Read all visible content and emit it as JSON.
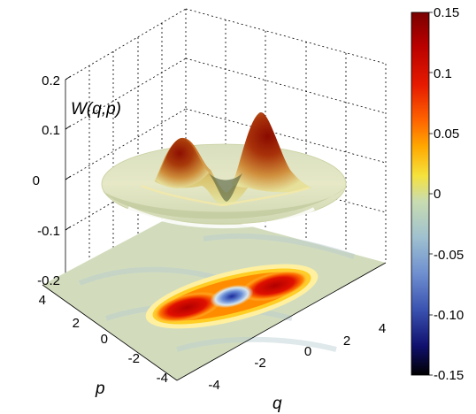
{
  "chart_data": {
    "type": "surface",
    "zlabel": "W(q,p)",
    "xlabel": "q",
    "ylabel": "p",
    "z_ticks": [
      "0.2",
      "0.1",
      "0",
      "-0.1",
      "-0.2"
    ],
    "q_ticks": [
      "-4",
      "-2",
      "0",
      "2",
      "4"
    ],
    "p_ticks": [
      "4",
      "2",
      "0",
      "-2",
      "-4"
    ],
    "zlim": [
      -0.2,
      0.2
    ],
    "qlim": [
      -5,
      5
    ],
    "plim": [
      -5,
      5
    ],
    "grid": true,
    "peaks": [
      {
        "q": -1.8,
        "p": 0,
        "W": 0.11
      },
      {
        "q": 1.8,
        "p": 0,
        "W": 0.135
      }
    ],
    "center_dip": {
      "q": 0,
      "p": 0,
      "W": -0.08
    },
    "projection": "contour map of W(q,p) drawn on the floor plane at W = -0.2",
    "colorbar": {
      "clim": [
        -0.15,
        0.15
      ],
      "tick_labels": [
        "0.15",
        "0.1",
        "0.05",
        "0",
        "-0.05",
        "-0.10",
        "-0.15"
      ],
      "colors": [
        "#7a0000",
        "#b80000",
        "#e61a00",
        "#ff6600",
        "#ffa800",
        "#f5e23c",
        "#c9dcb0",
        "#9fc1cf",
        "#6f8fd0",
        "#3a52b0",
        "#10106e",
        "#000000"
      ]
    }
  }
}
